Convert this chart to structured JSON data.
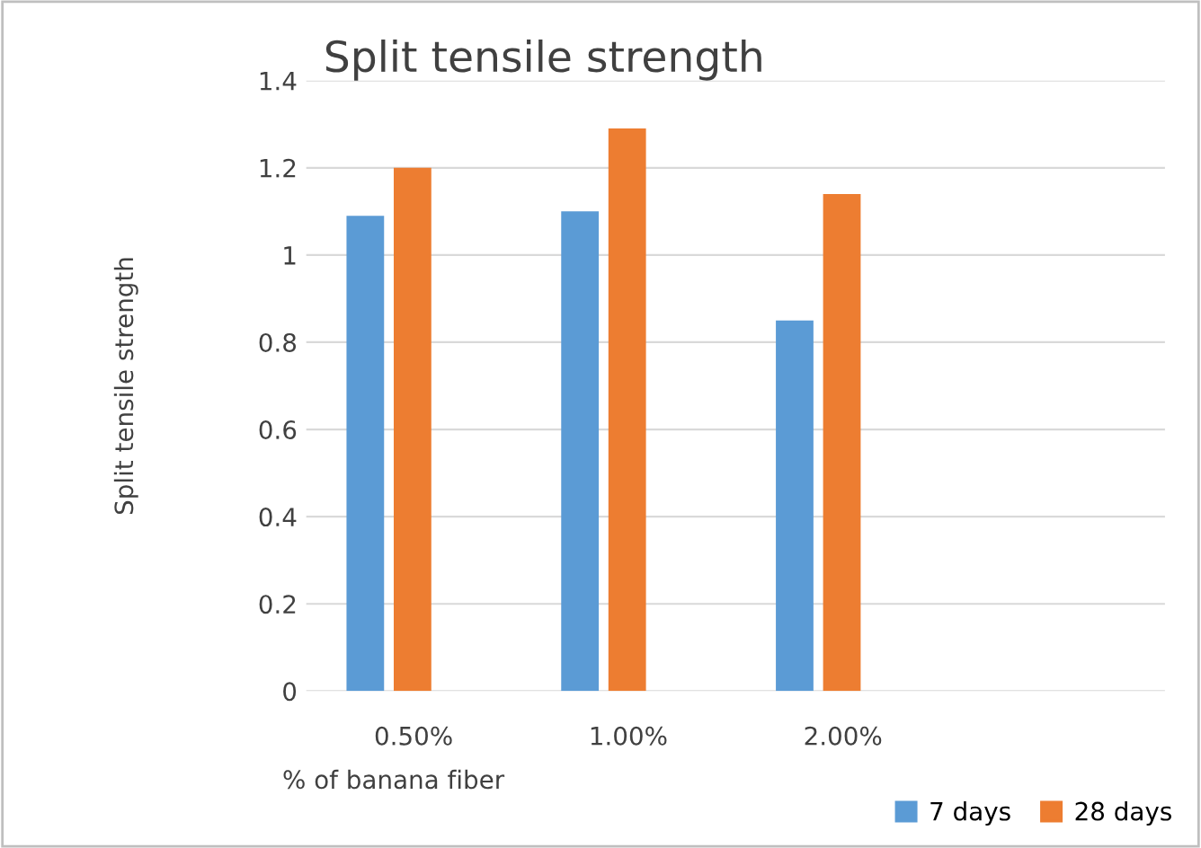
{
  "chart_data": {
    "type": "bar",
    "title": "Split tensile strength",
    "xlabel": "% of banana fiber",
    "ylabel": "Split tensile strength",
    "categories": [
      "0.50%",
      "1.00%",
      "2.00%",
      null
    ],
    "series": [
      {
        "name": "7 days",
        "color": "#5b9bd5",
        "values": [
          1.09,
          1.1,
          0.85,
          null
        ]
      },
      {
        "name": "28 days",
        "color": "#ed7d31",
        "values": [
          1.2,
          1.29,
          1.14,
          null
        ]
      }
    ],
    "ylim": [
      0,
      1.4
    ],
    "yticks": [
      0,
      0.2,
      0.4,
      0.6,
      0.8,
      1,
      1.2,
      1.4
    ],
    "grid": "y",
    "legend": "bottom right"
  }
}
